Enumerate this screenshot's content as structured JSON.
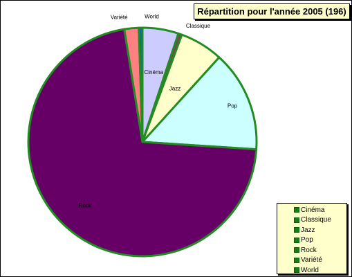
{
  "chart_data": {
    "type": "pie",
    "title": "Répartition pour l'année 2005 (196)",
    "categories": [
      "Cinéma",
      "Classique",
      "Jazz",
      "Pop",
      "Rock",
      "Variété",
      "World"
    ],
    "values": [
      10,
      1,
      12,
      28,
      140,
      4,
      1
    ],
    "slice_colors": [
      "#ccccff",
      "#993366",
      "#ffffcc",
      "#ccffff",
      "#660066",
      "#ff8080",
      "#0066cc"
    ],
    "outline_color": "#228B22",
    "legend_position": "bottom-right"
  }
}
